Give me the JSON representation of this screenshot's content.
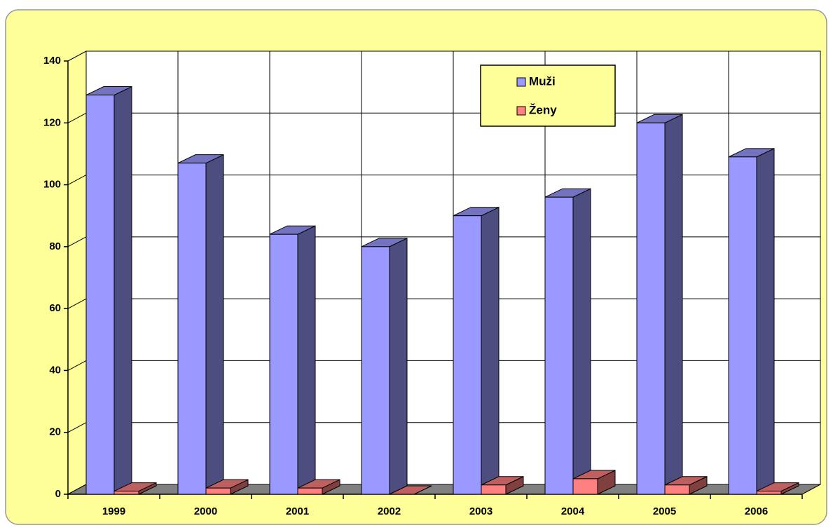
{
  "chart_data": {
    "type": "bar3d",
    "categories": [
      "1999",
      "2000",
      "2001",
      "2002",
      "2003",
      "2004",
      "2005",
      "2006"
    ],
    "series": [
      {
        "name": "Muži",
        "color": "#9999ff",
        "values": [
          129,
          107,
          84,
          80,
          90,
          96,
          120,
          109
        ]
      },
      {
        "name": "Ženy",
        "color": "#ff8080",
        "values": [
          1,
          2,
          2,
          0,
          3,
          5,
          3,
          1
        ]
      }
    ],
    "ylim": [
      0,
      140
    ],
    "yticks": [
      0,
      20,
      40,
      60,
      80,
      100,
      120,
      140
    ],
    "grid": true,
    "legend": "top-right"
  }
}
